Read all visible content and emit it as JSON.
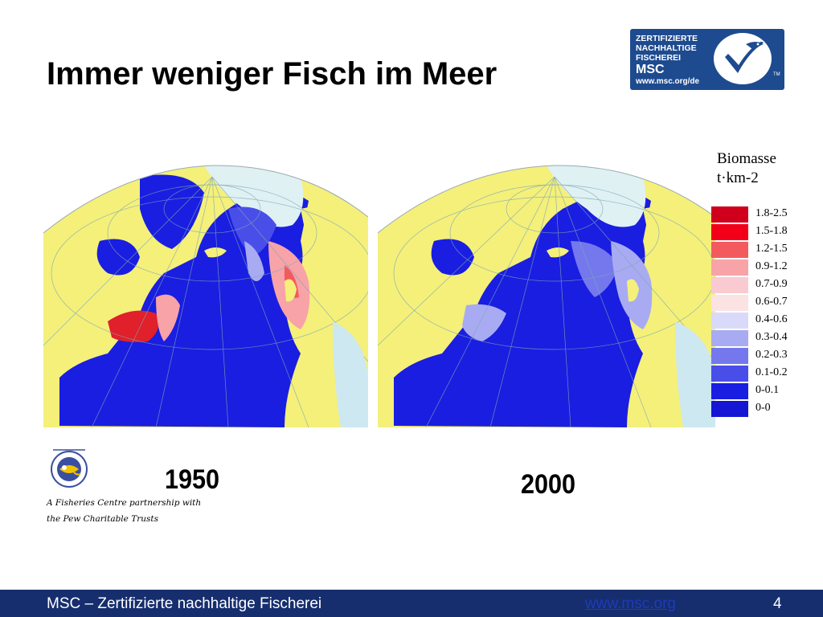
{
  "slide": {
    "title": "Immer weniger Fisch im Meer"
  },
  "msc_logo": {
    "lines": [
      "ZERTIFIZIERTE",
      "NACHHALTIGE",
      "FISCHEREI"
    ],
    "brand": "MSC",
    "url": "www.msc.org/de",
    "tm": "TM",
    "icon": "msc-checkmark-fish-icon",
    "color": "#1e4b8f"
  },
  "maps": [
    {
      "year": "1950",
      "icon": "north-atlantic-biomass-map-1950"
    },
    {
      "year": "2000",
      "icon": "north-atlantic-biomass-map-2000"
    }
  ],
  "legend": {
    "title_line1": "Biomasse",
    "title_line2": "t·km-2",
    "items": [
      {
        "label": "1.8-2.5",
        "color": "#d0001c"
      },
      {
        "label": "1.5-1.8",
        "color": "#f2001a"
      },
      {
        "label": "1.2-1.5",
        "color": "#f25a5e"
      },
      {
        "label": "0.9-1.2",
        "color": "#f7a3a8"
      },
      {
        "label": "0.7-0.9",
        "color": "#f9cbd0"
      },
      {
        "label": "0.6-0.7",
        "color": "#fbe2e3"
      },
      {
        "label": "0.4-0.6",
        "color": "#d9dafa"
      },
      {
        "label": "0.3-0.4",
        "color": "#a8abf2"
      },
      {
        "label": "0.2-0.3",
        "color": "#7478ec"
      },
      {
        "label": "0.1-0.2",
        "color": "#4a4ee8"
      },
      {
        "label": "0-0.1",
        "color": "#1a1ee0"
      },
      {
        "label": "0-0",
        "color": "#1416d4"
      }
    ]
  },
  "partner": {
    "icon": "sea-around-us-logo",
    "line1": "A Fisheries Centre partnership with",
    "line2": "the Pew Charitable Trusts"
  },
  "footer": {
    "text": "MSC – Zertifizierte nachhaltige Fischerei",
    "url": "www.msc.org",
    "page": "4",
    "background": "#162e6e"
  }
}
